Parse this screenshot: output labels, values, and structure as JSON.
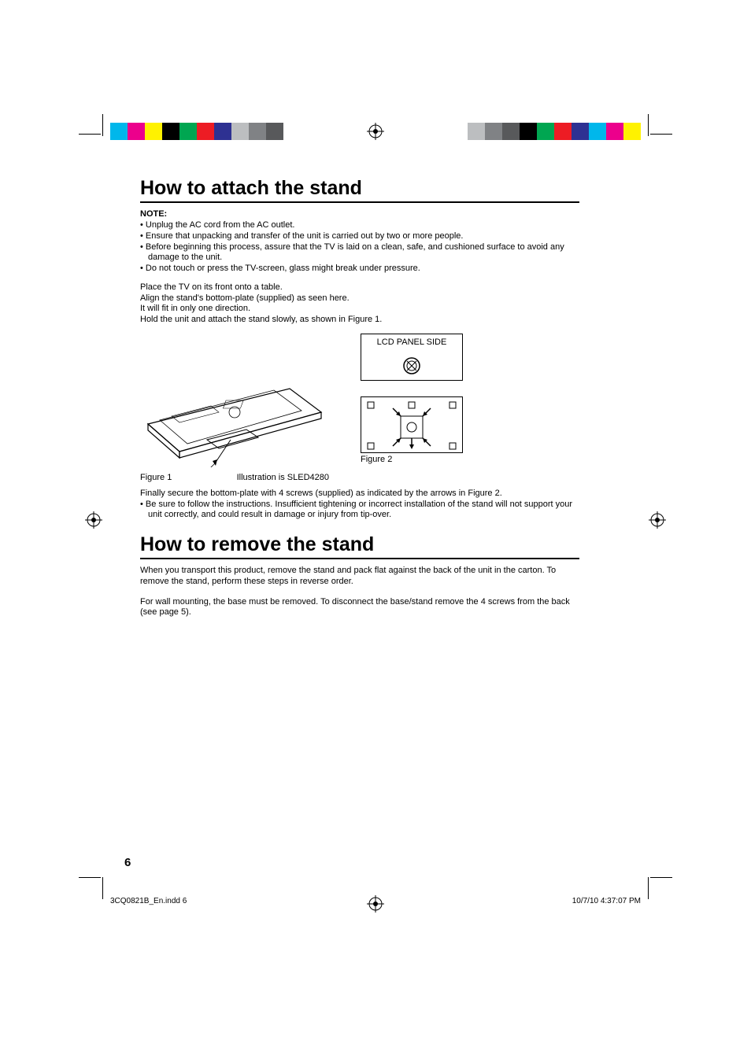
{
  "printbar": {
    "left_colors": [
      "#00b7eb",
      "#ec008c",
      "#fff200",
      "#000000",
      "#00a651",
      "#ed1c24",
      "#2e3192",
      "#bcbec0",
      "#808285",
      "#58595b"
    ],
    "right_colors": [
      "#bcbec0",
      "#808285",
      "#58595b",
      "#000000",
      "#00a651",
      "#ed1c24",
      "#2e3192",
      "#00b7eb",
      "#ec008c",
      "#fff200"
    ]
  },
  "section1": {
    "title": "How to attach the stand",
    "note_label": "NOTE:",
    "notes": [
      "Unplug the AC cord from the AC outlet.",
      "Ensure that unpacking and transfer of the unit is carried out by two or more people.",
      "Before beginning this process, assure that the TV is laid on a clean, safe, and cushioned surface to avoid any damage to the unit.",
      "Do not touch or press the TV-screen, glass might break under pressure."
    ],
    "instructions": [
      "Place the TV on its front onto a table.",
      "Align the stand's bottom-plate (supplied) as seen here.",
      "It will fit in only one direction.",
      "Hold the unit and attach the stand slowly, as shown in Figure 1."
    ],
    "fig1_label": "Figure 1",
    "fig1_ill": "Illustration is SLED4280",
    "fig_panel_label": "LCD PANEL SIDE",
    "fig2_label": "Figure 2",
    "after_fig": "Finally secure the bottom-plate with 4 screws (supplied) as indicated by the arrows in Figure 2.",
    "after_fig_bullet": "Be sure to follow the instructions. Insufficient tightening or incorrect installation of the stand will not support your unit correctly, and could result in damage or injury from tip-over."
  },
  "section2": {
    "title": "How to remove the stand",
    "p1": "When you transport this product, remove the stand and pack flat against the back of the unit in the carton. To remove the stand, perform these steps in reverse order.",
    "p2": "For wall mounting, the base must be removed. To disconnect the base/stand remove the 4 screws from the back (see page 5)."
  },
  "page_number": "6",
  "footer": {
    "left": "3CQ0821B_En.indd   6",
    "right": "10/7/10   4:37:07 PM"
  }
}
